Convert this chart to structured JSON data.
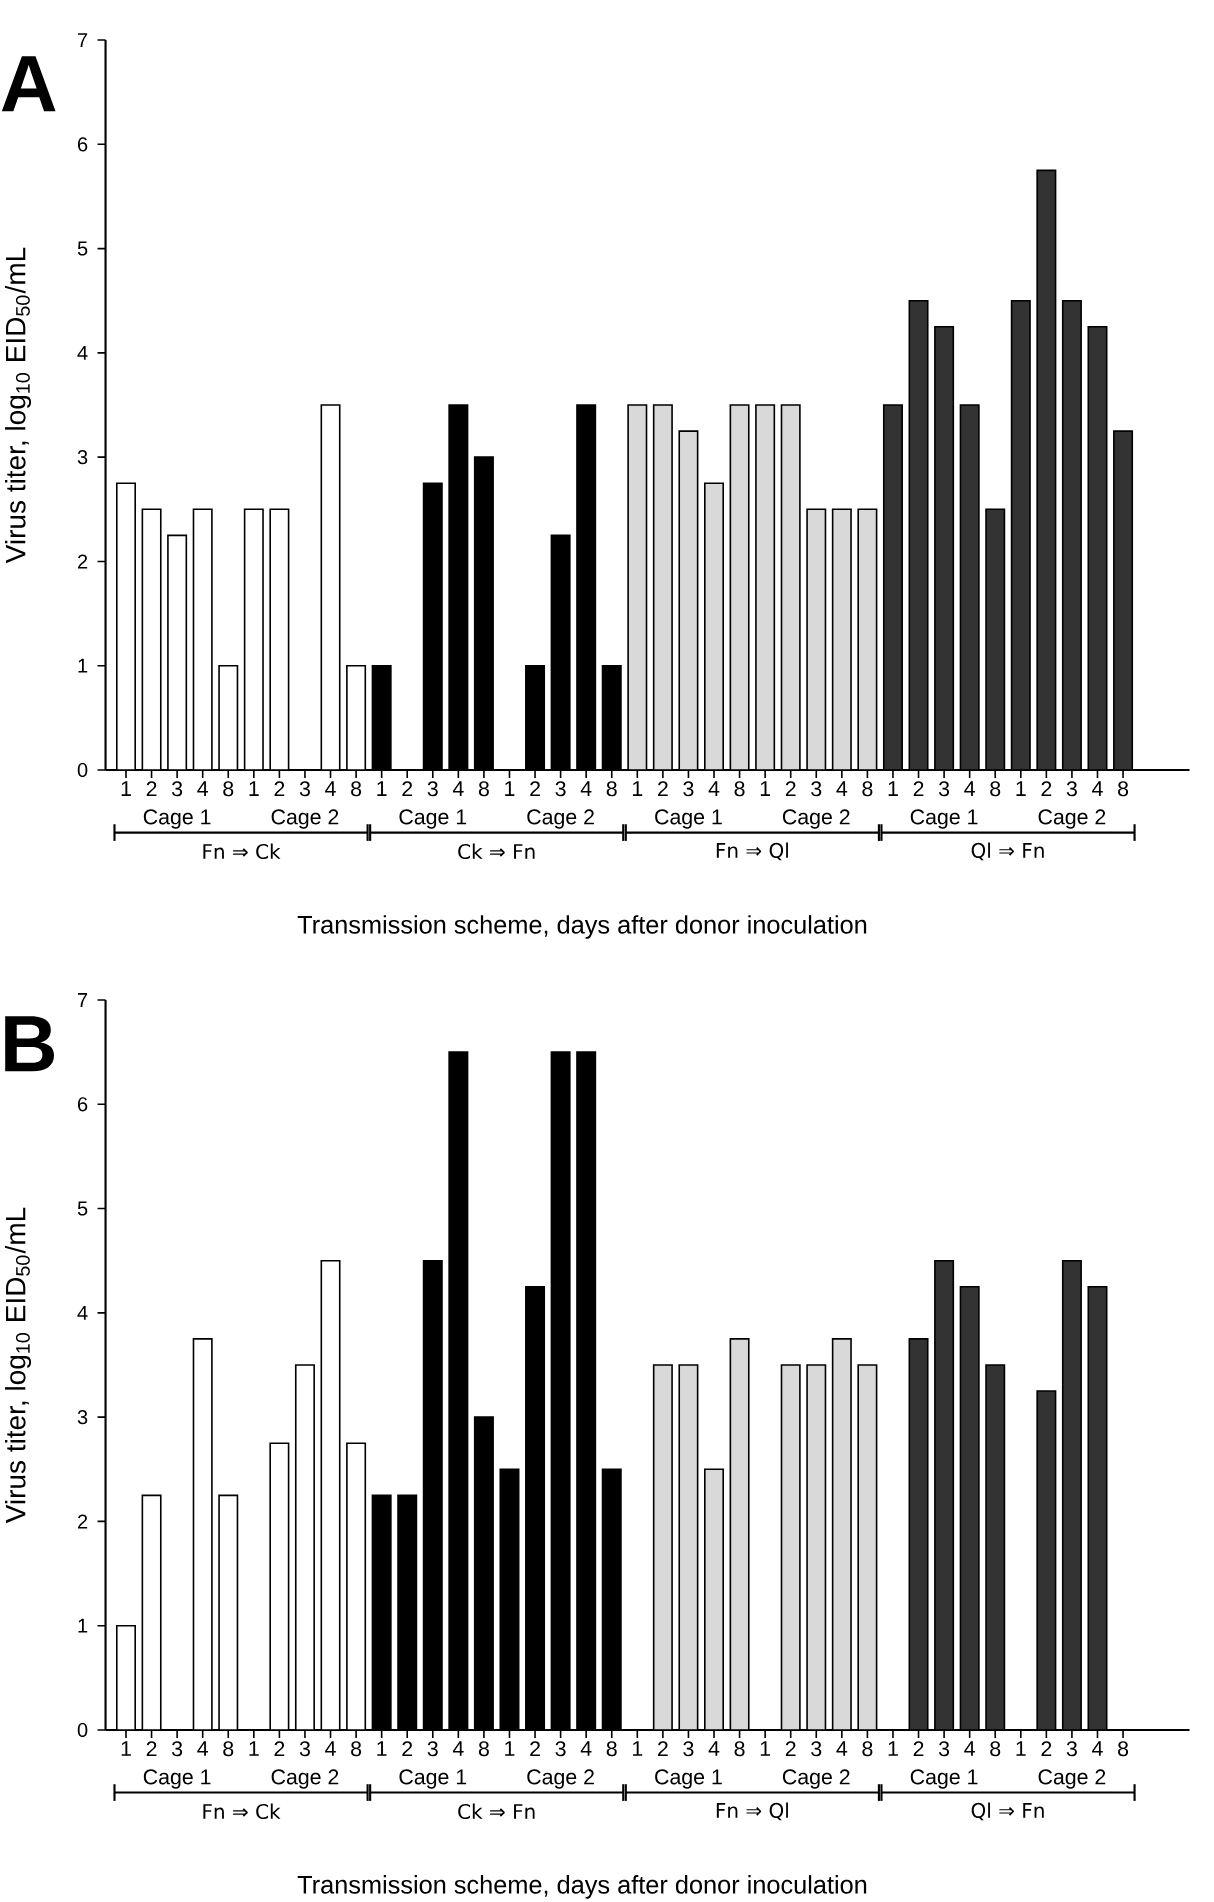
{
  "chart_data": [
    {
      "type": "bar",
      "title": "A",
      "xlabel": "Transmission scheme, days after donor inoculation",
      "ylabel": "Virus titer, log$_{10}$ EID$_{50}$/mL",
      "categories": [
        "1",
        "2",
        "3",
        "4",
        "8",
        "1",
        "2",
        "3",
        "4",
        "8",
        "1",
        "2",
        "3",
        "4",
        "8",
        "1",
        "2",
        "3",
        "4",
        "8",
        "1",
        "2",
        "3",
        "4",
        "8",
        "1",
        "2",
        "3",
        "4",
        "8",
        "1",
        "2",
        "3",
        "4",
        "8",
        "1",
        "2",
        "3",
        "4",
        "8"
      ],
      "values": [
        2.75,
        2.5,
        2.25,
        2.5,
        1,
        2.5,
        2.5,
        null,
        3.5,
        1,
        1,
        null,
        2.75,
        3.5,
        3,
        null,
        1,
        2.25,
        3.5,
        1,
        3.5,
        3.5,
        3.25,
        2.75,
        3.5,
        3.5,
        3.5,
        2.5,
        2.5,
        2.5,
        3.5,
        4.5,
        4.25,
        3.5,
        2.5,
        4.5,
        5.75,
        4.5,
        4.25,
        3.25
      ],
      "colors": [
        "#ffffff",
        "#ffffff",
        "#ffffff",
        "#ffffff",
        "#ffffff",
        "#ffffff",
        "#ffffff",
        "#ffffff",
        "#ffffff",
        "#ffffff",
        "#000000",
        "#000000",
        "#000000",
        "#000000",
        "#000000",
        "#000000",
        "#000000",
        "#000000",
        "#000000",
        "#000000",
        "#d9d9d9",
        "#d9d9d9",
        "#d9d9d9",
        "#d9d9d9",
        "#d9d9d9",
        "#d9d9d9",
        "#d9d9d9",
        "#d9d9d9",
        "#d9d9d9",
        "#d9d9d9",
        "#333333",
        "#333333",
        "#333333",
        "#333333",
        "#333333",
        "#333333",
        "#333333",
        "#333333",
        "#333333",
        "#333333"
      ],
      "ylim": [
        0,
        7
      ],
      "yticks": [
        0,
        1,
        2,
        3,
        4,
        5,
        6,
        7
      ],
      "annotations": [
        "Cage 1",
        "Cage 2",
        "Cage 1",
        "Cage 2",
        "Cage 1",
        "Cage 2",
        "Cage 1",
        "Cage 2",
        "Fn ⇒ Ck",
        "Ck ⇒ Fn",
        "Fn ⇒ Ql",
        "Ql ⇒ Fn"
      ]
    },
    {
      "type": "bar",
      "title": "B",
      "xlabel": "Transmission scheme, days after donor inoculation",
      "ylabel": "Virus titer, log$_{10}$ EID$_{50}$/mL",
      "categories": [
        "1",
        "2",
        "3",
        "4",
        "8",
        "1",
        "2",
        "3",
        "4",
        "8",
        "1",
        "2",
        "3",
        "4",
        "8",
        "1",
        "2",
        "3",
        "4",
        "8",
        "1",
        "2",
        "3",
        "4",
        "8",
        "1",
        "2",
        "3",
        "4",
        "8",
        "1",
        "2",
        "3",
        "4",
        "8",
        "1",
        "2",
        "3",
        "4",
        "8"
      ],
      "values": [
        1,
        2.25,
        null,
        3.75,
        2.25,
        null,
        2.75,
        3.5,
        4.5,
        2.75,
        2.25,
        2.25,
        4.5,
        6.5,
        3,
        2.5,
        4.25,
        6.5,
        6.5,
        2.5,
        null,
        3.5,
        3.5,
        2.5,
        3.75,
        null,
        3.5,
        3.5,
        3.75,
        3.5,
        null,
        3.75,
        4.5,
        4.25,
        3.5,
        null,
        3.25,
        4.5,
        4.25,
        null
      ],
      "colors": [
        "#ffffff",
        "#ffffff",
        "#ffffff",
        "#ffffff",
        "#ffffff",
        "#ffffff",
        "#ffffff",
        "#ffffff",
        "#ffffff",
        "#ffffff",
        "#000000",
        "#000000",
        "#000000",
        "#000000",
        "#000000",
        "#000000",
        "#000000",
        "#000000",
        "#000000",
        "#000000",
        "#d9d9d9",
        "#d9d9d9",
        "#d9d9d9",
        "#d9d9d9",
        "#d9d9d9",
        "#d9d9d9",
        "#d9d9d9",
        "#d9d9d9",
        "#d9d9d9",
        "#d9d9d9",
        "#333333",
        "#333333",
        "#333333",
        "#333333",
        "#333333",
        "#333333",
        "#333333",
        "#333333",
        "#333333",
        "#333333"
      ],
      "ylim": [
        0,
        7
      ],
      "yticks": [
        0,
        1,
        2,
        3,
        4,
        5,
        6,
        7
      ],
      "annotations": [
        "Cage 1",
        "Cage 2",
        "Cage 1",
        "Cage 2",
        "Cage 1",
        "Cage 2",
        "Cage 1",
        "Cage 2",
        "Fn ⇒ Ck",
        "Ck ⇒ Fn",
        "Fn ⇒ Ql",
        "Ql ⇒ Fn"
      ]
    }
  ]
}
